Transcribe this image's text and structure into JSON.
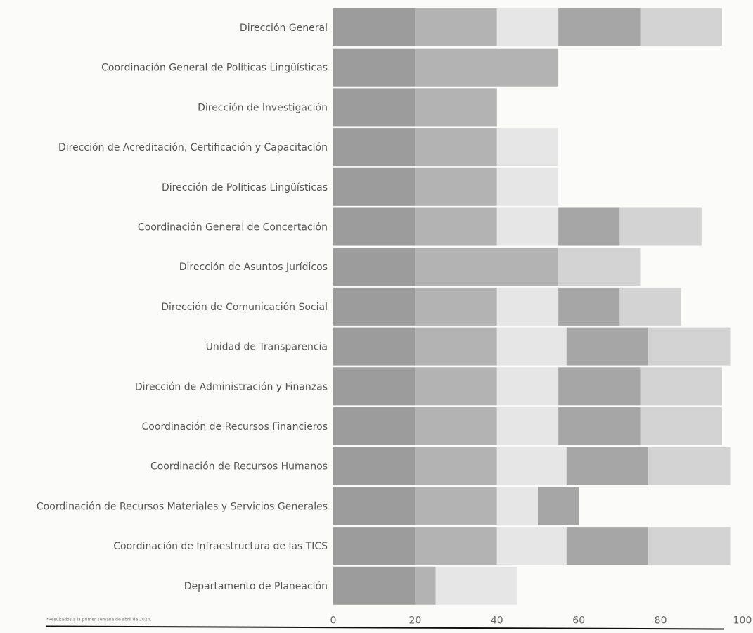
{
  "chart_data": {
    "type": "bar",
    "orientation": "horizontal",
    "stacked": true,
    "categories": [
      "Dirección General",
      "Coordinación General de Políticas Lingüísticas",
      "Dirección de Investigación",
      "Dirección de Acreditación, Certificación y Capacitación",
      "Dirección de Políticas Lingüísticas",
      "Coordinación General de Concertación",
      "Dirección de Asuntos Jurídicos",
      "Dirección de Comunicación Social",
      "Unidad de Transparencia",
      "Dirección de Administración y Finanzas",
      "Coordinación de Recursos Financieros",
      "Coordinación de Recursos Humanos",
      "Coordinación de Recursos Materiales y Servicios Generales",
      "Coordinación de Infraestructura de las TICS",
      "Departamento de Planeación"
    ],
    "series": [
      {
        "color": "#9c9c9c",
        "values": [
          20,
          20,
          20,
          20,
          20,
          20,
          20,
          20,
          20,
          20,
          20,
          20,
          20,
          20,
          20
        ]
      },
      {
        "color": "#b3b3b3",
        "values": [
          20,
          35,
          20,
          20,
          20,
          20,
          35,
          20,
          20,
          20,
          20,
          20,
          20,
          20,
          5
        ]
      },
      {
        "color": "#e6e6e6",
        "values": [
          15,
          0,
          0,
          15,
          15,
          15,
          0,
          15,
          17,
          15,
          15,
          17,
          10,
          17,
          20
        ]
      },
      {
        "color": "#a6a6a6",
        "values": [
          20,
          0,
          0,
          0,
          0,
          15,
          0,
          15,
          20,
          20,
          20,
          20,
          10,
          20,
          0
        ]
      },
      {
        "color": "#d3d3d3",
        "values": [
          20,
          0,
          0,
          0,
          0,
          20,
          20,
          15,
          20,
          20,
          20,
          20,
          0,
          20,
          0
        ]
      }
    ],
    "xlim": [
      0,
      100
    ],
    "x_ticks": [
      "0",
      "20",
      "40",
      "60",
      "80",
      "100"
    ],
    "grid": false,
    "footnote": "*Resultados a la primer semana de abril de 2024."
  }
}
